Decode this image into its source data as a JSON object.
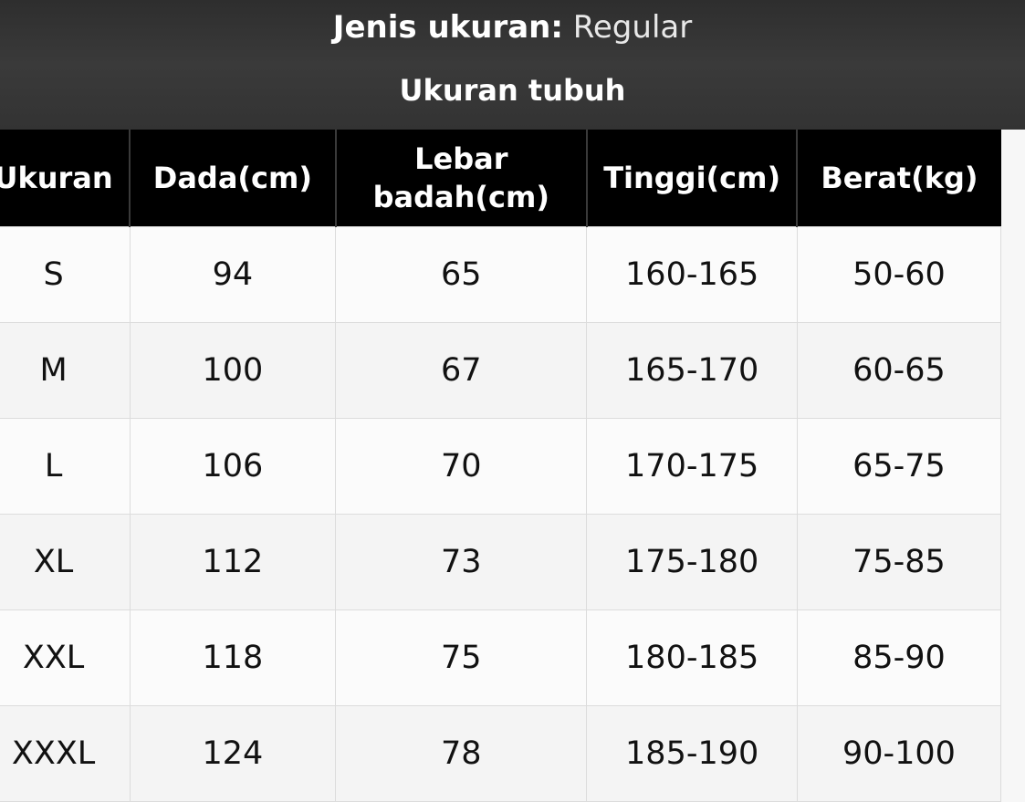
{
  "title": {
    "label": "Jenis ukuran:",
    "value": "Regular"
  },
  "subtitle": "Ukuran tubuh",
  "table": {
    "headers": [
      "Ukuran",
      "Dada(cm)",
      "Lebar badah(cm)",
      "Tinggi(cm)",
      "Berat(kg)"
    ],
    "rows": [
      [
        "S",
        "94",
        "65",
        "160-165",
        "50-60"
      ],
      [
        "M",
        "100",
        "67",
        "165-170",
        "60-65"
      ],
      [
        "L",
        "106",
        "70",
        "170-175",
        "65-75"
      ],
      [
        "XL",
        "112",
        "73",
        "175-180",
        "75-85"
      ],
      [
        "XXL",
        "118",
        "75",
        "180-185",
        "85-90"
      ],
      [
        "XXXL",
        "124",
        "78",
        "185-190",
        "90-100"
      ]
    ]
  }
}
